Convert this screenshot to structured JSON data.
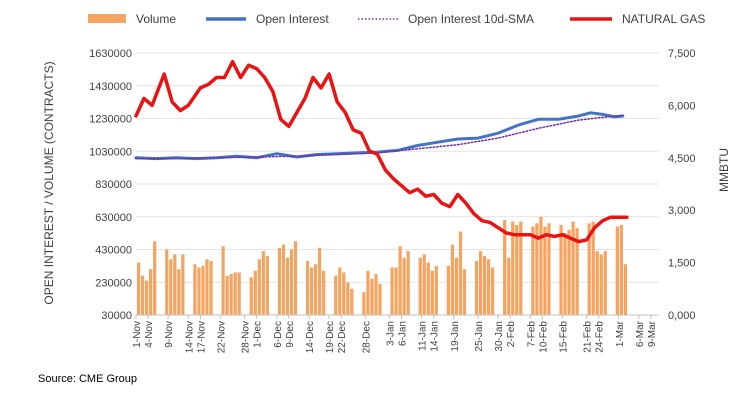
{
  "source": "Source: CME Group",
  "chart_data": {
    "type": "bar+line",
    "title": "",
    "legend_position": "top",
    "grid": true,
    "colors": {
      "volume": "#F4A460",
      "open_interest": "#4472C4",
      "sma": "#7030A0",
      "gas": "#E81414",
      "grid": "#e4e4e4",
      "axis": "#bfbfbf"
    },
    "ylabel_left": "OPEN INTEREST / VOLUME (CONTRACTS)",
    "ylabel_right": "MMBTU",
    "ylim_left": [
      30000,
      1630000
    ],
    "ylim_right": [
      0,
      7500
    ],
    "yticks_left": [
      "1630000",
      "1430000",
      "1230000",
      "1030000",
      "830000",
      "630000",
      "430000",
      "230000",
      "30000"
    ],
    "yticks_right": [
      "7,500",
      "6,000",
      "4,500",
      "3,000",
      "1,500",
      "0,000"
    ],
    "x_range_days": 130,
    "x_tick_labels": [
      "1-Nov",
      "4-Nov",
      "9-Nov",
      "14-Nov",
      "17-Nov",
      "22-Nov",
      "28-Nov",
      "1-Dec",
      "6-Dec",
      "9-Dec",
      "14-Dec",
      "19-Dec",
      "22-Dec",
      "28-Dec",
      "3-Jan",
      "6-Jan",
      "11-Jan",
      "14-Jan",
      "19-Jan",
      "25-Jan",
      "30-Jan",
      "2-Feb",
      "7-Feb",
      "10-Feb",
      "15-Feb",
      "21-Feb",
      "24-Feb",
      "1-Mar",
      "6-Mar",
      "9-Mar"
    ],
    "x_tick_days": [
      0,
      3,
      8,
      13,
      16,
      21,
      27,
      30,
      35,
      38,
      43,
      48,
      51,
      57,
      63,
      66,
      71,
      74,
      79,
      85,
      90,
      93,
      98,
      101,
      106,
      112,
      115,
      120,
      125,
      128
    ],
    "series": [
      {
        "name": "Volume",
        "type": "bar",
        "x_days": [
          0,
          1,
          2,
          3,
          4,
          7,
          8,
          9,
          10,
          11,
          14,
          15,
          16,
          17,
          18,
          21,
          22,
          23,
          24,
          25,
          28,
          29,
          30,
          31,
          32,
          35,
          36,
          37,
          38,
          39,
          42,
          43,
          44,
          45,
          46,
          49,
          50,
          51,
          52,
          53,
          56,
          57,
          58,
          59,
          60,
          63,
          64,
          65,
          66,
          67,
          70,
          71,
          72,
          73,
          74,
          77,
          78,
          79,
          80,
          81,
          84,
          85,
          86,
          87,
          88,
          91,
          92,
          93,
          94,
          95,
          98,
          99,
          100,
          101,
          102,
          105,
          106,
          107,
          108,
          109,
          112,
          113,
          114,
          115,
          116,
          119,
          120,
          121
        ],
        "values": [
          350000,
          270000,
          240000,
          310000,
          480000,
          430000,
          370000,
          400000,
          310000,
          400000,
          340000,
          320000,
          330000,
          370000,
          360000,
          450000,
          270000,
          280000,
          290000,
          290000,
          260000,
          300000,
          370000,
          420000,
          390000,
          440000,
          460000,
          380000,
          430000,
          480000,
          360000,
          320000,
          340000,
          440000,
          300000,
          270000,
          320000,
          290000,
          230000,
          190000,
          170000,
          300000,
          250000,
          280000,
          220000,
          320000,
          320000,
          450000,
          380000,
          420000,
          380000,
          400000,
          350000,
          300000,
          330000,
          330000,
          460000,
          380000,
          540000,
          310000,
          360000,
          420000,
          390000,
          370000,
          320000,
          610000,
          380000,
          600000,
          580000,
          600000,
          570000,
          590000,
          630000,
          570000,
          590000,
          580000,
          530000,
          550000,
          600000,
          560000,
          590000,
          600000,
          420000,
          400000,
          420000,
          570000,
          580000,
          340000
        ]
      },
      {
        "name": "Open Interest",
        "type": "line",
        "x_days": [
          0,
          5,
          10,
          15,
          20,
          25,
          30,
          35,
          40,
          45,
          50,
          55,
          60,
          65,
          70,
          75,
          80,
          85,
          90,
          95,
          100,
          105,
          110,
          113,
          116,
          119,
          121
        ],
        "values": [
          990000,
          985000,
          990000,
          985000,
          990000,
          1000000,
          990000,
          1015000,
          995000,
          1010000,
          1015000,
          1020000,
          1025000,
          1035000,
          1065000,
          1085000,
          1105000,
          1110000,
          1140000,
          1190000,
          1225000,
          1225000,
          1245000,
          1265000,
          1255000,
          1240000,
          1245000
        ]
      },
      {
        "name": "Open Interest 10d-SMA",
        "type": "line",
        "x_days": [
          0,
          10,
          20,
          30,
          40,
          50,
          60,
          70,
          80,
          90,
          100,
          110,
          121
        ],
        "values": [
          985000,
          985000,
          990000,
          995000,
          1000000,
          1010000,
          1020000,
          1045000,
          1070000,
          1110000,
          1170000,
          1220000,
          1250000
        ]
      },
      {
        "name": "NATURAL GAS",
        "type": "line",
        "axis": "right",
        "x_days": [
          0,
          2,
          4,
          7,
          9,
          11,
          13,
          16,
          18,
          20,
          22,
          24,
          26,
          28,
          30,
          32,
          34,
          36,
          38,
          40,
          42,
          44,
          46,
          48,
          50,
          52,
          54,
          56,
          58,
          60,
          62,
          64,
          66,
          68,
          70,
          72,
          74,
          76,
          78,
          80,
          82,
          84,
          86,
          88,
          90,
          92,
          94,
          96,
          98,
          100,
          102,
          104,
          106,
          108,
          110,
          112,
          114,
          116,
          118,
          120,
          122
        ],
        "values": [
          5700,
          6200,
          6000,
          6900,
          6100,
          5850,
          6000,
          6500,
          6600,
          6800,
          6800,
          7250,
          6800,
          7150,
          7050,
          6800,
          6400,
          5600,
          5400,
          5800,
          6200,
          6800,
          6500,
          6900,
          6100,
          5800,
          5300,
          5200,
          4700,
          4600,
          4150,
          3900,
          3700,
          3500,
          3600,
          3400,
          3450,
          3200,
          3100,
          3450,
          3200,
          2900,
          2700,
          2650,
          2500,
          2350,
          2300,
          2300,
          2300,
          2200,
          2300,
          2250,
          2300,
          2200,
          2100,
          2150,
          2500,
          2700,
          2800,
          2800,
          2800
        ]
      }
    ]
  }
}
